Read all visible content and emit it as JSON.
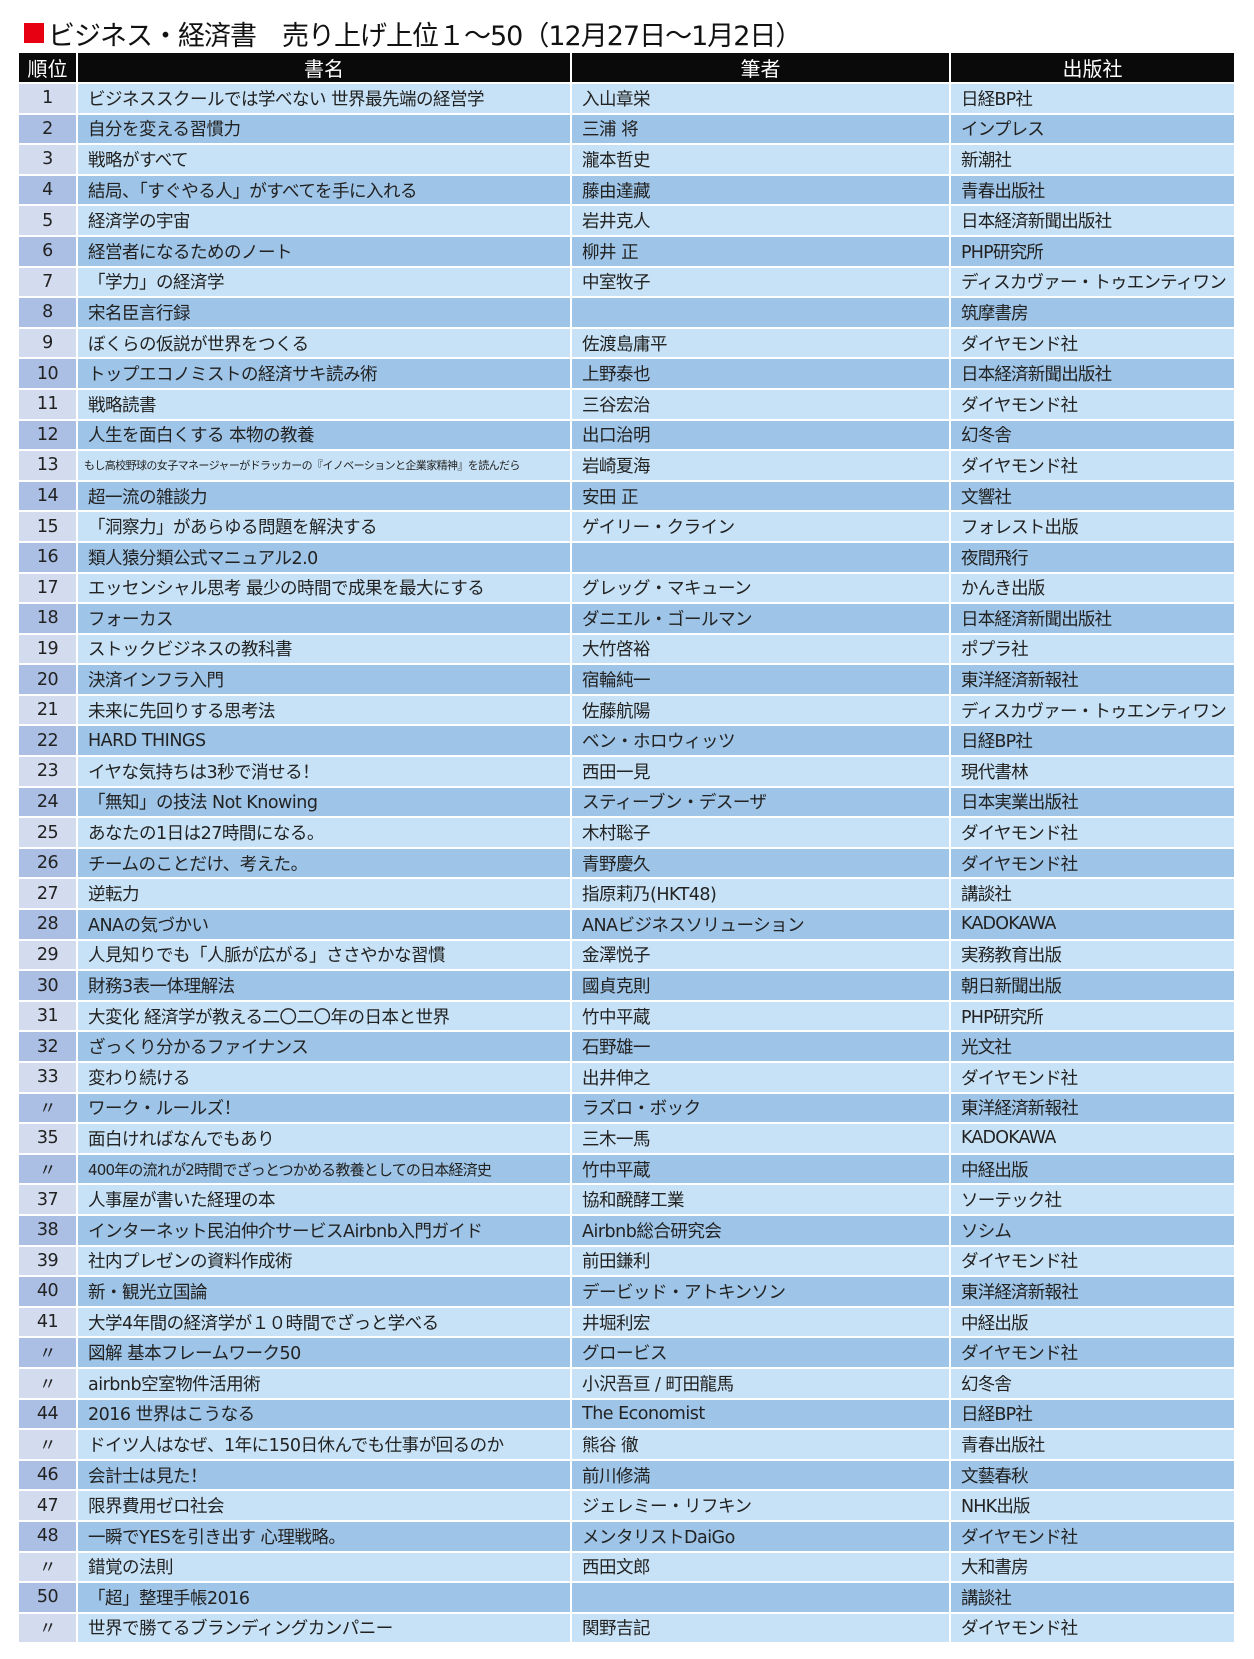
{
  "title": "ビジネス・経済書　売り上げ上位１～50（12月27日～1月2日）",
  "accent_color": "#e60012",
  "table": {
    "headers": [
      "順位",
      "書名",
      "筆者",
      "出版社"
    ],
    "rows": [
      [
        "1",
        "ビジネススクールでは学べない 世界最先端の経営学",
        "入山章栄",
        "日経BP社"
      ],
      [
        "2",
        "自分を変える習慣力",
        "三浦 将",
        "インプレス"
      ],
      [
        "3",
        "戦略がすべて",
        "瀧本哲史",
        "新潮社"
      ],
      [
        "4",
        "結局、「すぐやる人」がすべてを手に入れる",
        "藤由達藏",
        "青春出版社"
      ],
      [
        "5",
        "経済学の宇宙",
        "岩井克人",
        "日本経済新聞出版社"
      ],
      [
        "6",
        "経営者になるためのノート",
        "柳井 正",
        "PHP研究所"
      ],
      [
        "7",
        "「学力」の経済学",
        "中室牧子",
        "ディスカヴァー・トゥエンティワン"
      ],
      [
        "8",
        "宋名臣言行録",
        "",
        "筑摩書房"
      ],
      [
        "9",
        "ぼくらの仮説が世界をつくる",
        "佐渡島庸平",
        "ダイヤモンド社"
      ],
      [
        "10",
        "トップエコノミストの経済サキ読み術",
        "上野泰也",
        "日本経済新聞出版社"
      ],
      [
        "11",
        "戦略読書",
        "三谷宏治",
        "ダイヤモンド社"
      ],
      [
        "12",
        "人生を面白くする 本物の教養",
        "出口治明",
        "幻冬舎"
      ],
      [
        "13",
        "もし高校野球の女子マネージャーがドラッカーの『イノベーションと企業家精神』を読んだら",
        "岩崎夏海",
        "ダイヤモンド社"
      ],
      [
        "14",
        "超一流の雑談力",
        "安田 正",
        "文響社"
      ],
      [
        "15",
        "「洞察力」があらゆる問題を解決する",
        "ゲイリー・クライン",
        "フォレスト出版"
      ],
      [
        "16",
        "類人猿分類公式マニュアル2.0",
        "",
        "夜間飛行"
      ],
      [
        "17",
        "エッセンシャル思考 最少の時間で成果を最大にする",
        "グレッグ・マキューン",
        "かんき出版"
      ],
      [
        "18",
        "フォーカス",
        "ダニエル・ゴールマン",
        "日本経済新聞出版社"
      ],
      [
        "19",
        "ストックビジネスの教科書",
        "大竹啓裕",
        "ポプラ社"
      ],
      [
        "20",
        "決済インフラ入門",
        "宿輪純一",
        "東洋経済新報社"
      ],
      [
        "21",
        "未来に先回りする思考法",
        "佐藤航陽",
        "ディスカヴァー・トゥエンティワン"
      ],
      [
        "22",
        "HARD THINGS",
        "ベン・ホロウィッツ",
        "日経BP社"
      ],
      [
        "23",
        "イヤな気持ちは3秒で消せる！",
        "西田一見",
        "現代書林"
      ],
      [
        "24",
        "「無知」の技法 Not Knowing",
        "スティーブン・デスーザ",
        "日本実業出版社"
      ],
      [
        "25",
        "あなたの1日は27時間になる。",
        "木村聡子",
        "ダイヤモンド社"
      ],
      [
        "26",
        "チームのことだけ、考えた。",
        "青野慶久",
        "ダイヤモンド社"
      ],
      [
        "27",
        "逆転力",
        "指原莉乃(HKT48)",
        "講談社"
      ],
      [
        "28",
        "ANAの気づかい",
        "ANAビジネスソリューション",
        "KADOKAWA"
      ],
      [
        "29",
        "人見知りでも「人脈が広がる」ささやかな習慣",
        "金澤悦子",
        "実務教育出版"
      ],
      [
        "30",
        "財務3表一体理解法",
        "國貞克則",
        "朝日新聞出版"
      ],
      [
        "31",
        "大変化 経済学が教える二〇二〇年の日本と世界",
        "竹中平蔵",
        "PHP研究所"
      ],
      [
        "32",
        "ざっくり分かるファイナンス",
        "石野雄一",
        "光文社"
      ],
      [
        "33",
        "変わり続ける",
        "出井伸之",
        "ダイヤモンド社"
      ],
      [
        "〃",
        "ワーク・ルールズ！",
        "ラズロ・ボック",
        "東洋経済新報社"
      ],
      [
        "35",
        "面白ければなんでもあり",
        "三木一馬",
        "KADOKAWA"
      ],
      [
        "〃",
        "400年の流れが2時間でざっとつかめる教養としての日本経済史",
        "竹中平蔵",
        "中経出版"
      ],
      [
        "37",
        "人事屋が書いた経理の本",
        "協和醗酵工業",
        "ソーテック社"
      ],
      [
        "38",
        "インターネット民泊仲介サービスAirbnb入門ガイド",
        "Airbnb総合研究会",
        "ソシム"
      ],
      [
        "39",
        "社内プレゼンの資料作成術",
        "前田鎌利",
        "ダイヤモンド社"
      ],
      [
        "40",
        "新・観光立国論",
        "デービッド・アトキンソン",
        "東洋経済新報社"
      ],
      [
        "41",
        "大学4年間の経済学が１０時間でざっと学べる",
        "井堀利宏",
        "中経出版"
      ],
      [
        "〃",
        "図解 基本フレームワーク50",
        "グロービス",
        "ダイヤモンド社"
      ],
      [
        "〃",
        "airbnb空室物件活用術",
        "小沢吾亘 / 町田龍馬",
        "幻冬舎"
      ],
      [
        "44",
        "2016 世界はこうなる",
        "The Economist",
        "日経BP社"
      ],
      [
        "〃",
        "ドイツ人はなぜ、1年に150日休んでも仕事が回るのか",
        "熊谷 徹",
        "青春出版社"
      ],
      [
        "46",
        "会計士は見た！",
        "前川修満",
        "文藝春秋"
      ],
      [
        "47",
        "限界費用ゼロ社会",
        "ジェレミー・リフキン",
        "NHK出版"
      ],
      [
        "48",
        "一瞬でYESを引き出す 心理戦略。",
        "メンタリストDaiGo",
        "ダイヤモンド社"
      ],
      [
        "〃",
        "錯覚の法則",
        "西田文郎",
        "大和書房"
      ],
      [
        "50",
        "「超」整理手帳2016",
        "",
        "講談社"
      ],
      [
        "〃",
        "世界で勝てるブランディングカンパニー",
        "関野吉記",
        "ダイヤモンド社"
      ]
    ]
  }
}
